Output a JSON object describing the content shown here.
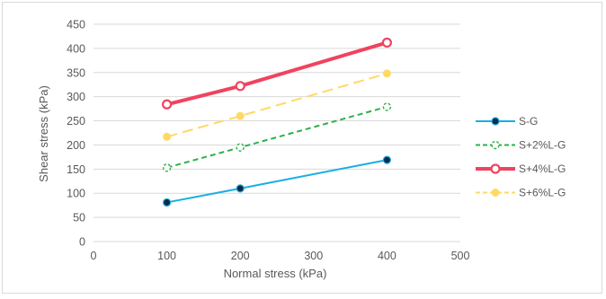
{
  "chart_data": {
    "type": "line",
    "title": "",
    "xlabel": "Normal stress (kPa)",
    "ylabel": "Shear stress (kPa)",
    "xlim": [
      0,
      500
    ],
    "ylim": [
      0,
      450
    ],
    "xticks": [
      0,
      100,
      200,
      300,
      400,
      500
    ],
    "yticks": [
      0,
      50,
      100,
      150,
      200,
      250,
      300,
      350,
      400,
      450
    ],
    "x": [
      100,
      200,
      400
    ],
    "grid": "horizontal",
    "legend_position": "right",
    "series": [
      {
        "name": "S-G",
        "values": [
          81,
          110,
          169
        ],
        "color": "#1aaee5",
        "marker": "filled-circle-navy",
        "line": "solid",
        "width": 2
      },
      {
        "name": "S+2%L-G",
        "values": [
          153,
          195,
          279
        ],
        "color": "#2db04a",
        "marker": "hollow-circle",
        "line": "dashed",
        "width": 2
      },
      {
        "name": "S+4%L-G",
        "values": [
          284,
          322,
          412
        ],
        "color": "#f0435f",
        "marker": "hollow-circle",
        "line": "solid",
        "width": 4
      },
      {
        "name": "S+6%L-G",
        "values": [
          217,
          260,
          348
        ],
        "color": "#ffd966",
        "marker": "filled-circle",
        "line": "dashed",
        "width": 2
      }
    ]
  }
}
